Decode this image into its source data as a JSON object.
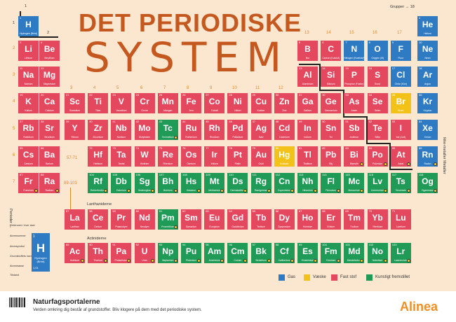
{
  "title_line1": "DET PERIODISKE",
  "title_line2": "SYSTEM",
  "groups_label": "Grupper",
  "groups_first": "1",
  "groups_last": "18",
  "periods_label": "Perioder",
  "metals_label": "Ikke-metaller  Metaller",
  "lanthanides_label": "Lanthaniderne",
  "actinides_label": "Actiniderne",
  "range_lanthanides": "57-71",
  "range_actinides": "89-103",
  "group_numbers": {
    "g1": "1",
    "g2": "2",
    "g3": "3",
    "g4": "4",
    "g5": "5",
    "g6": "6",
    "g7": "7",
    "g8": "8",
    "g9": "9",
    "g10": "10",
    "g11": "11",
    "g12": "12",
    "g13": "13",
    "g14": "14",
    "g15": "15",
    "g16": "16",
    "g17": "17",
    "g18": "18"
  },
  "period_numbers": [
    "1",
    "2",
    "3",
    "4",
    "5",
    "6",
    "7"
  ],
  "key": {
    "number": "1",
    "symbol": "H",
    "name": "Hydrogen (Brint)",
    "mass": "1,01",
    "labels": [
      "Elektroner i hver skal",
      "Atomnummer",
      "Atomsymbol",
      "Grundstoffets navn",
      "Atommasse",
      "Tilstand"
    ]
  },
  "legend": [
    {
      "label": "Gas",
      "color": "#2f7bc3"
    },
    {
      "label": "Væske",
      "color": "#f2c218"
    },
    {
      "label": "Fast stof",
      "color": "#e4485f"
    },
    {
      "label": "Kunstigt fremstillet",
      "color": "#1f9b57"
    }
  ],
  "footer": {
    "brand": "Naturfagsportalerne",
    "tagline": "Verden omkring dig består af grundstoffer. Bliv klogere på dem med det periodiske system.",
    "logo": "Alinea"
  },
  "elements": [
    {
      "n": "1",
      "s": "H",
      "name": "Hydrogen (Brint)",
      "state": "gas",
      "p": 1,
      "g": 1
    },
    {
      "n": "2",
      "s": "He",
      "name": "Helium",
      "state": "gas",
      "p": 1,
      "g": 18
    },
    {
      "n": "3",
      "s": "Li",
      "name": "Lithium",
      "state": "solid",
      "p": 2,
      "g": 1
    },
    {
      "n": "4",
      "s": "Be",
      "name": "Beryllium",
      "state": "solid",
      "p": 2,
      "g": 2
    },
    {
      "n": "5",
      "s": "B",
      "name": "Bor",
      "state": "solid",
      "p": 2,
      "g": 13
    },
    {
      "n": "6",
      "s": "C",
      "name": "Carbon (Kulstof)",
      "state": "solid",
      "p": 2,
      "g": 14
    },
    {
      "n": "7",
      "s": "N",
      "name": "Nitrogen (Kvælstof)",
      "state": "gas",
      "p": 2,
      "g": 15
    },
    {
      "n": "8",
      "s": "O",
      "name": "Oxygen (Ilt)",
      "state": "gas",
      "p": 2,
      "g": 16
    },
    {
      "n": "9",
      "s": "F",
      "name": "Fluor",
      "state": "gas",
      "p": 2,
      "g": 17
    },
    {
      "n": "10",
      "s": "Ne",
      "name": "Neon",
      "state": "gas",
      "p": 2,
      "g": 18
    },
    {
      "n": "11",
      "s": "Na",
      "name": "Natrium",
      "state": "solid",
      "p": 3,
      "g": 1
    },
    {
      "n": "12",
      "s": "Mg",
      "name": "Magnesium",
      "state": "solid",
      "p": 3,
      "g": 2
    },
    {
      "n": "13",
      "s": "Al",
      "name": "Aluminium",
      "state": "solid",
      "p": 3,
      "g": 13
    },
    {
      "n": "14",
      "s": "Si",
      "name": "Silicium",
      "state": "solid",
      "p": 3,
      "g": 14
    },
    {
      "n": "15",
      "s": "P",
      "name": "Phosphor (Fosfor)",
      "state": "solid",
      "p": 3,
      "g": 15
    },
    {
      "n": "16",
      "s": "S",
      "name": "Svovl",
      "state": "solid",
      "p": 3,
      "g": 16
    },
    {
      "n": "17",
      "s": "Cl",
      "name": "Chlor (Klor)",
      "state": "gas",
      "p": 3,
      "g": 17
    },
    {
      "n": "18",
      "s": "Ar",
      "name": "Argon",
      "state": "gas",
      "p": 3,
      "g": 18
    },
    {
      "n": "19",
      "s": "K",
      "name": "Kalium",
      "state": "solid",
      "p": 4,
      "g": 1
    },
    {
      "n": "20",
      "s": "Ca",
      "name": "Calcium",
      "state": "solid",
      "p": 4,
      "g": 2
    },
    {
      "n": "21",
      "s": "Sc",
      "name": "Scandium",
      "state": "solid",
      "p": 4,
      "g": 3
    },
    {
      "n": "22",
      "s": "Ti",
      "name": "Titan",
      "state": "solid",
      "p": 4,
      "g": 4
    },
    {
      "n": "23",
      "s": "V",
      "name": "Vanadium",
      "state": "solid",
      "p": 4,
      "g": 5
    },
    {
      "n": "24",
      "s": "Cr",
      "name": "Chrom",
      "state": "solid",
      "p": 4,
      "g": 6
    },
    {
      "n": "25",
      "s": "Mn",
      "name": "Mangan",
      "state": "solid",
      "p": 4,
      "g": 7
    },
    {
      "n": "26",
      "s": "Fe",
      "name": "Jern",
      "state": "solid",
      "p": 4,
      "g": 8
    },
    {
      "n": "27",
      "s": "Co",
      "name": "Cobalt",
      "state": "solid",
      "p": 4,
      "g": 9
    },
    {
      "n": "28",
      "s": "Ni",
      "name": "Nikkel",
      "state": "solid",
      "p": 4,
      "g": 10
    },
    {
      "n": "29",
      "s": "Cu",
      "name": "Kobber",
      "state": "solid",
      "p": 4,
      "g": 11
    },
    {
      "n": "30",
      "s": "Zn",
      "name": "Zink",
      "state": "solid",
      "p": 4,
      "g": 12
    },
    {
      "n": "31",
      "s": "Ga",
      "name": "Gallium",
      "state": "solid",
      "p": 4,
      "g": 13
    },
    {
      "n": "32",
      "s": "Ge",
      "name": "Germanium",
      "state": "solid",
      "p": 4,
      "g": 14
    },
    {
      "n": "33",
      "s": "As",
      "name": "Arsen",
      "state": "solid",
      "p": 4,
      "g": 15
    },
    {
      "n": "34",
      "s": "Se",
      "name": "Selen",
      "state": "solid",
      "p": 4,
      "g": 16
    },
    {
      "n": "35",
      "s": "Br",
      "name": "Brom",
      "state": "liquid",
      "p": 4,
      "g": 17
    },
    {
      "n": "36",
      "s": "Kr",
      "name": "Krypton",
      "state": "gas",
      "p": 4,
      "g": 18
    },
    {
      "n": "37",
      "s": "Rb",
      "name": "Rubidium",
      "state": "solid",
      "p": 5,
      "g": 1
    },
    {
      "n": "38",
      "s": "Sr",
      "name": "Strontium",
      "state": "solid",
      "p": 5,
      "g": 2
    },
    {
      "n": "39",
      "s": "Y",
      "name": "Yttrium",
      "state": "solid",
      "p": 5,
      "g": 3
    },
    {
      "n": "40",
      "s": "Zr",
      "name": "Zirconium",
      "state": "solid",
      "p": 5,
      "g": 4
    },
    {
      "n": "41",
      "s": "Nb",
      "name": "Niobium",
      "state": "solid",
      "p": 5,
      "g": 5
    },
    {
      "n": "42",
      "s": "Mo",
      "name": "Molybdæn",
      "state": "solid",
      "p": 5,
      "g": 6
    },
    {
      "n": "43",
      "s": "Tc",
      "name": "Technetium",
      "state": "synthetic",
      "p": 5,
      "g": 7,
      "rad": true
    },
    {
      "n": "44",
      "s": "Ru",
      "name": "Ruthenium",
      "state": "solid",
      "p": 5,
      "g": 8
    },
    {
      "n": "45",
      "s": "Rh",
      "name": "Rhodium",
      "state": "solid",
      "p": 5,
      "g": 9
    },
    {
      "n": "46",
      "s": "Pd",
      "name": "Palladium",
      "state": "solid",
      "p": 5,
      "g": 10
    },
    {
      "n": "47",
      "s": "Ag",
      "name": "Sølv",
      "state": "solid",
      "p": 5,
      "g": 11
    },
    {
      "n": "48",
      "s": "Cd",
      "name": "Cadmium",
      "state": "solid",
      "p": 5,
      "g": 12
    },
    {
      "n": "49",
      "s": "In",
      "name": "Indium",
      "state": "solid",
      "p": 5,
      "g": 13
    },
    {
      "n": "50",
      "s": "Sn",
      "name": "Tin",
      "state": "solid",
      "p": 5,
      "g": 14
    },
    {
      "n": "51",
      "s": "Sb",
      "name": "Antimon",
      "state": "solid",
      "p": 5,
      "g": 15
    },
    {
      "n": "52",
      "s": "Te",
      "name": "Tellur",
      "state": "solid",
      "p": 5,
      "g": 16
    },
    {
      "n": "53",
      "s": "I",
      "name": "Iod (Jod)",
      "state": "solid",
      "p": 5,
      "g": 17
    },
    {
      "n": "54",
      "s": "Xe",
      "name": "Xenon",
      "state": "gas",
      "p": 5,
      "g": 18
    },
    {
      "n": "55",
      "s": "Cs",
      "name": "Cæsium",
      "state": "solid",
      "p": 6,
      "g": 1
    },
    {
      "n": "56",
      "s": "Ba",
      "name": "Barium",
      "state": "solid",
      "p": 6,
      "g": 2
    },
    {
      "n": "72",
      "s": "Hf",
      "name": "Hafnium",
      "state": "solid",
      "p": 6,
      "g": 4
    },
    {
      "n": "73",
      "s": "Ta",
      "name": "Tantal",
      "state": "solid",
      "p": 6,
      "g": 5
    },
    {
      "n": "74",
      "s": "W",
      "name": "Wolfram",
      "state": "solid",
      "p": 6,
      "g": 6
    },
    {
      "n": "75",
      "s": "Re",
      "name": "Rhenium",
      "state": "solid",
      "p": 6,
      "g": 7
    },
    {
      "n": "76",
      "s": "Os",
      "name": "Osmium",
      "state": "solid",
      "p": 6,
      "g": 8
    },
    {
      "n": "77",
      "s": "Ir",
      "name": "Iridium",
      "state": "solid",
      "p": 6,
      "g": 9
    },
    {
      "n": "78",
      "s": "Pt",
      "name": "Platin",
      "state": "solid",
      "p": 6,
      "g": 10
    },
    {
      "n": "79",
      "s": "Au",
      "name": "Guld",
      "state": "solid",
      "p": 6,
      "g": 11
    },
    {
      "n": "80",
      "s": "Hg",
      "name": "Kviksølv",
      "state": "liquid",
      "p": 6,
      "g": 12
    },
    {
      "n": "81",
      "s": "Tl",
      "name": "Thallium",
      "state": "solid",
      "p": 6,
      "g": 13
    },
    {
      "n": "82",
      "s": "Pb",
      "name": "Bly",
      "state": "solid",
      "p": 6,
      "g": 14
    },
    {
      "n": "83",
      "s": "Bi",
      "name": "Bismuth",
      "state": "solid",
      "p": 6,
      "g": 15,
      "rad": true
    },
    {
      "n": "84",
      "s": "Po",
      "name": "Polonium",
      "state": "solid",
      "p": 6,
      "g": 16,
      "rad": true
    },
    {
      "n": "85",
      "s": "At",
      "name": "Astat",
      "state": "solid",
      "p": 6,
      "g": 17,
      "rad": true
    },
    {
      "n": "86",
      "s": "Rn",
      "name": "Radon",
      "state": "gas",
      "p": 6,
      "g": 18,
      "rad": true
    },
    {
      "n": "87",
      "s": "Fr",
      "name": "Francium",
      "state": "solid",
      "p": 7,
      "g": 1,
      "rad": true
    },
    {
      "n": "88",
      "s": "Ra",
      "name": "Radium",
      "state": "solid",
      "p": 7,
      "g": 2,
      "rad": true
    },
    {
      "n": "104",
      "s": "Rf",
      "name": "Rutherfordium",
      "state": "synthetic",
      "p": 7,
      "g": 4,
      "rad": true
    },
    {
      "n": "105",
      "s": "Db",
      "name": "Dubnium",
      "state": "synthetic",
      "p": 7,
      "g": 5,
      "rad": true
    },
    {
      "n": "106",
      "s": "Sg",
      "name": "Seaborgium",
      "state": "synthetic",
      "p": 7,
      "g": 6,
      "rad": true
    },
    {
      "n": "107",
      "s": "Bh",
      "name": "Bohrium",
      "state": "synthetic",
      "p": 7,
      "g": 7,
      "rad": true
    },
    {
      "n": "108",
      "s": "Hs",
      "name": "Hassium",
      "state": "synthetic",
      "p": 7,
      "g": 8,
      "rad": true
    },
    {
      "n": "109",
      "s": "Mt",
      "name": "Meitnerium",
      "state": "synthetic",
      "p": 7,
      "g": 9,
      "rad": true
    },
    {
      "n": "110",
      "s": "Ds",
      "name": "Darmstadtium",
      "state": "synthetic",
      "p": 7,
      "g": 10,
      "rad": true
    },
    {
      "n": "111",
      "s": "Rg",
      "name": "Røntgenium",
      "state": "synthetic",
      "p": 7,
      "g": 11,
      "rad": true
    },
    {
      "n": "112",
      "s": "Cn",
      "name": "Copernicium",
      "state": "synthetic",
      "p": 7,
      "g": 12,
      "rad": true
    },
    {
      "n": "113",
      "s": "Nh",
      "name": "Nihonium",
      "state": "synthetic",
      "p": 7,
      "g": 13,
      "rad": true
    },
    {
      "n": "114",
      "s": "Fl",
      "name": "Flerovium",
      "state": "synthetic",
      "p": 7,
      "g": 14,
      "rad": true
    },
    {
      "n": "115",
      "s": "Mc",
      "name": "Moscovium",
      "state": "synthetic",
      "p": 7,
      "g": 15,
      "rad": true
    },
    {
      "n": "116",
      "s": "Lv",
      "name": "Livermorium",
      "state": "synthetic",
      "p": 7,
      "g": 16,
      "rad": true
    },
    {
      "n": "117",
      "s": "Ts",
      "name": "Tennessin",
      "state": "synthetic",
      "p": 7,
      "g": 17,
      "rad": true
    },
    {
      "n": "118",
      "s": "Og",
      "name": "Oganesson",
      "state": "synthetic",
      "p": 7,
      "g": 18,
      "rad": true
    },
    {
      "n": "57",
      "s": "La",
      "name": "Lanthan",
      "state": "solid",
      "p": "la",
      "g": 3
    },
    {
      "n": "58",
      "s": "Ce",
      "name": "Cerium",
      "state": "solid",
      "p": "la",
      "g": 4
    },
    {
      "n": "59",
      "s": "Pr",
      "name": "Praseodym",
      "state": "solid",
      "p": "la",
      "g": 5
    },
    {
      "n": "60",
      "s": "Nd",
      "name": "Neodym",
      "state": "solid",
      "p": "la",
      "g": 6
    },
    {
      "n": "61",
      "s": "Pm",
      "name": "Promethium",
      "state": "synthetic",
      "p": "la",
      "g": 7,
      "rad": true
    },
    {
      "n": "62",
      "s": "Sm",
      "name": "Samarium",
      "state": "solid",
      "p": "la",
      "g": 8
    },
    {
      "n": "63",
      "s": "Eu",
      "name": "Europium",
      "state": "solid",
      "p": "la",
      "g": 9
    },
    {
      "n": "64",
      "s": "Gd",
      "name": "Gadolinium",
      "state": "solid",
      "p": "la",
      "g": 10
    },
    {
      "n": "65",
      "s": "Tb",
      "name": "Terbium",
      "state": "solid",
      "p": "la",
      "g": 11
    },
    {
      "n": "66",
      "s": "Dy",
      "name": "Dysprosium",
      "state": "solid",
      "p": "la",
      "g": 12
    },
    {
      "n": "67",
      "s": "Ho",
      "name": "Holmium",
      "state": "solid",
      "p": "la",
      "g": 13
    },
    {
      "n": "68",
      "s": "Er",
      "name": "Erbium",
      "state": "solid",
      "p": "la",
      "g": 14
    },
    {
      "n": "69",
      "s": "Tm",
      "name": "Thulium",
      "state": "solid",
      "p": "la",
      "g": 15
    },
    {
      "n": "70",
      "s": "Yb",
      "name": "Ytterbium",
      "state": "solid",
      "p": "la",
      "g": 16
    },
    {
      "n": "71",
      "s": "Lu",
      "name": "Lutetium",
      "state": "solid",
      "p": "la",
      "g": 17
    },
    {
      "n": "89",
      "s": "Ac",
      "name": "Actinium",
      "state": "solid",
      "p": "ac",
      "g": 3,
      "rad": true
    },
    {
      "n": "90",
      "s": "Th",
      "name": "Thorium",
      "state": "solid",
      "p": "ac",
      "g": 4,
      "rad": true
    },
    {
      "n": "91",
      "s": "Pa",
      "name": "Protactinium",
      "state": "solid",
      "p": "ac",
      "g": 5,
      "rad": true
    },
    {
      "n": "92",
      "s": "U",
      "name": "Uran",
      "state": "solid",
      "p": "ac",
      "g": 6,
      "rad": true
    },
    {
      "n": "93",
      "s": "Np",
      "name": "Neptunium",
      "state": "synthetic",
      "p": "ac",
      "g": 7,
      "rad": true
    },
    {
      "n": "94",
      "s": "Pu",
      "name": "Plutonium",
      "state": "synthetic",
      "p": "ac",
      "g": 8,
      "rad": true
    },
    {
      "n": "95",
      "s": "Am",
      "name": "Americium",
      "state": "synthetic",
      "p": "ac",
      "g": 9,
      "rad": true
    },
    {
      "n": "96",
      "s": "Cm",
      "name": "Curium",
      "state": "synthetic",
      "p": "ac",
      "g": 10,
      "rad": true
    },
    {
      "n": "97",
      "s": "Bk",
      "name": "Berkelium",
      "state": "synthetic",
      "p": "ac",
      "g": 11,
      "rad": true
    },
    {
      "n": "98",
      "s": "Cf",
      "name": "Californium",
      "state": "synthetic",
      "p": "ac",
      "g": 12,
      "rad": true
    },
    {
      "n": "99",
      "s": "Es",
      "name": "Einsteinium",
      "state": "synthetic",
      "p": "ac",
      "g": 13,
      "rad": true
    },
    {
      "n": "100",
      "s": "Fm",
      "name": "Fermium",
      "state": "synthetic",
      "p": "ac",
      "g": 14,
      "rad": true
    },
    {
      "n": "101",
      "s": "Md",
      "name": "Mendelevium",
      "state": "synthetic",
      "p": "ac",
      "g": 15,
      "rad": true
    },
    {
      "n": "102",
      "s": "No",
      "name": "Nobelium",
      "state": "synthetic",
      "p": "ac",
      "g": 16,
      "rad": true
    },
    {
      "n": "103",
      "s": "Lr",
      "name": "Lawrencium",
      "state": "synthetic",
      "p": "ac",
      "g": 17,
      "rad": true
    }
  ]
}
